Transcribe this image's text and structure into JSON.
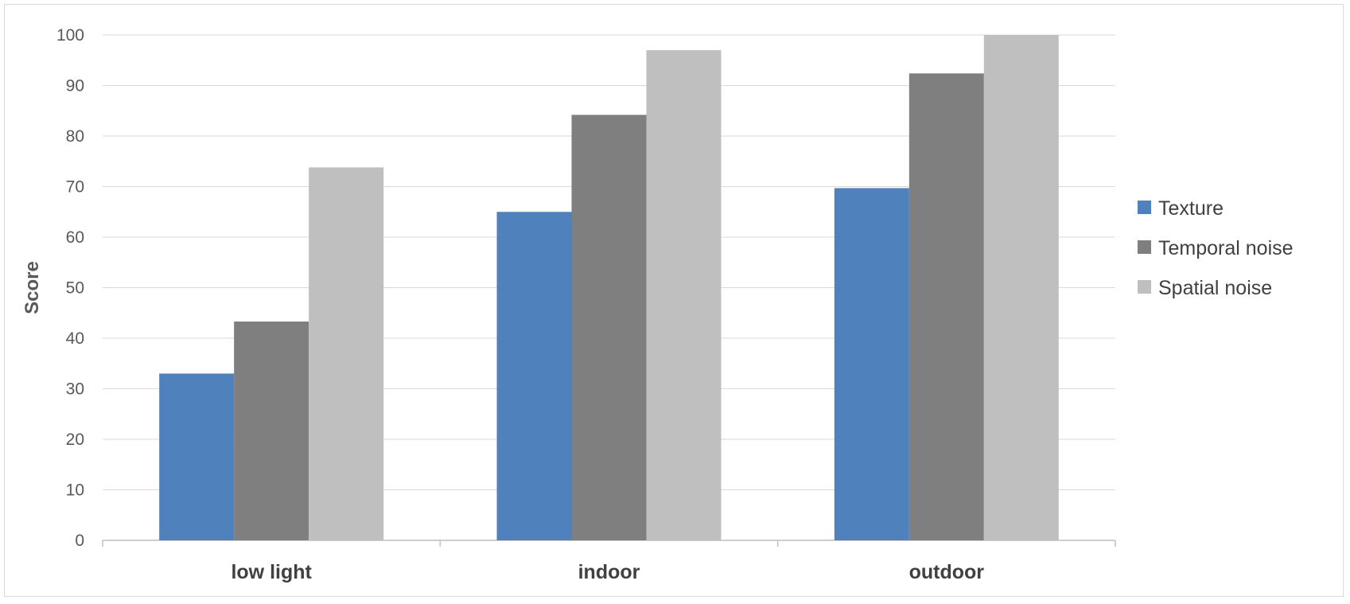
{
  "chart_data": {
    "type": "bar",
    "title": "",
    "xlabel": "",
    "ylabel": "Score",
    "ylim": [
      0,
      100
    ],
    "yticks": [
      0,
      10,
      20,
      30,
      40,
      50,
      60,
      70,
      80,
      90,
      100
    ],
    "grid": true,
    "legend_position": "right",
    "categories": [
      "low light",
      "indoor",
      "outdoor"
    ],
    "series": [
      {
        "name": "Texture",
        "color": "#4f81bd",
        "values": [
          33,
          65,
          69.7
        ]
      },
      {
        "name": "Temporal noise",
        "color": "#7f7f7f",
        "values": [
          43.3,
          84.2,
          92.4
        ]
      },
      {
        "name": "Spatial noise",
        "color": "#bfbfbf",
        "values": [
          73.8,
          97,
          100
        ]
      }
    ]
  }
}
